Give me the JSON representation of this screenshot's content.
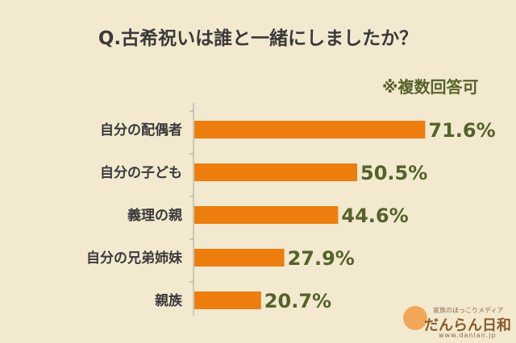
{
  "title": "Q.古希祝いは誰と一緒にしましたか？",
  "note": "※複数回答可",
  "chart_data": {
    "type": "bar",
    "orientation": "horizontal",
    "categories": [
      "自分の配偶者",
      "自分の子ども",
      "義理の親",
      "自分の兄弟姉妹",
      "親族"
    ],
    "values": [
      71.6,
      50.5,
      44.6,
      27.9,
      20.7
    ],
    "value_labels": [
      "71.6%",
      "50.5%",
      "44.6%",
      "27.9%",
      "20.7%"
    ],
    "xlim": [
      0,
      100
    ],
    "bar_color": "#ed7d0d",
    "label_color": "#55622a",
    "axis_color": "#a6a6a6"
  },
  "logo": {
    "tagline": "家族のほっこりメディア",
    "name": "だんらん日和",
    "url": "www.danlan.jp"
  }
}
